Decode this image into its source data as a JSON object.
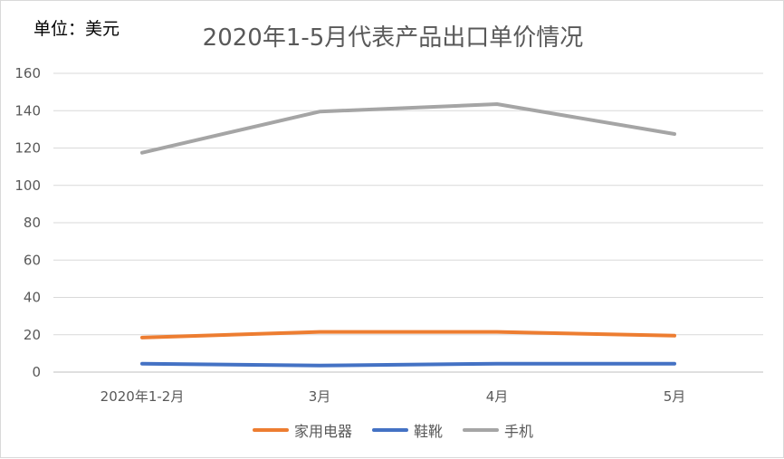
{
  "unit_label": "单位：美元",
  "chart_data": {
    "type": "line",
    "title": "2020年1-5月代表产品出口单价情况",
    "categories": [
      "2020年1-2月",
      "3月",
      "4月",
      "5月"
    ],
    "ylim": [
      0,
      160
    ],
    "yticks": [
      0,
      20,
      40,
      60,
      80,
      100,
      120,
      140,
      160
    ],
    "grid": true,
    "legend_position": "bottom",
    "series": [
      {
        "name": "家用电器",
        "color": "#ED7D31",
        "values": [
          18.5,
          21.5,
          21.5,
          19.5
        ]
      },
      {
        "name": "鞋靴",
        "color": "#4472C4",
        "values": [
          4.5,
          3.5,
          4.5,
          4.5
        ]
      },
      {
        "name": "手机",
        "color": "#A5A5A5",
        "values": [
          117.5,
          139.5,
          143.5,
          127.5
        ]
      }
    ]
  }
}
